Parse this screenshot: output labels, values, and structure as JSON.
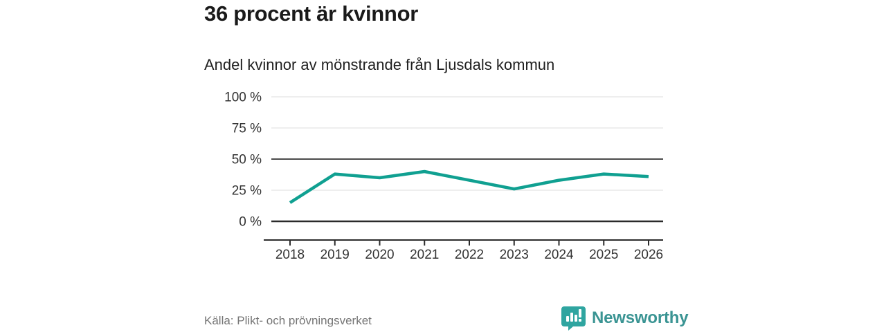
{
  "header": {
    "title": "36 procent är kvinnor",
    "subtitle": "Andel kvinnor av mönstrande från Ljusdals kommun"
  },
  "chart_data": {
    "type": "line",
    "x": [
      2018,
      2019,
      2020,
      2021,
      2022,
      2023,
      2024,
      2025,
      2026
    ],
    "series": [
      {
        "name": "Andel kvinnor av mönstrande",
        "values": [
          15,
          38,
          35,
          40,
          33,
          26,
          33,
          38,
          36
        ]
      }
    ],
    "title": "36 procent är kvinnor",
    "subtitle": "Andel kvinnor av mönstrande från Ljusdals kommun",
    "xlabel": "",
    "ylabel": "",
    "ylim": [
      0,
      100
    ],
    "yticks": [
      0,
      25,
      50,
      75,
      100
    ],
    "ytick_labels": [
      "0 %",
      "25 %",
      "50 %",
      "75 %",
      "100 %"
    ],
    "grid": true,
    "highlight_gridline": 50,
    "legend": "none",
    "line_color": "#10a091"
  },
  "footer": {
    "source": "Källa: Plikt- och prövningsverket",
    "brand": "Newsworthy"
  },
  "colors": {
    "accent_line": "#10a091",
    "brand_icon": "#2fa5a0",
    "brand_text": "#3a9493",
    "grid_light": "#dddddd",
    "grid_strong": "#4a4a4a",
    "axis_dark": "#2b2b2b",
    "source_text": "#757575",
    "background": "#ffffff"
  }
}
